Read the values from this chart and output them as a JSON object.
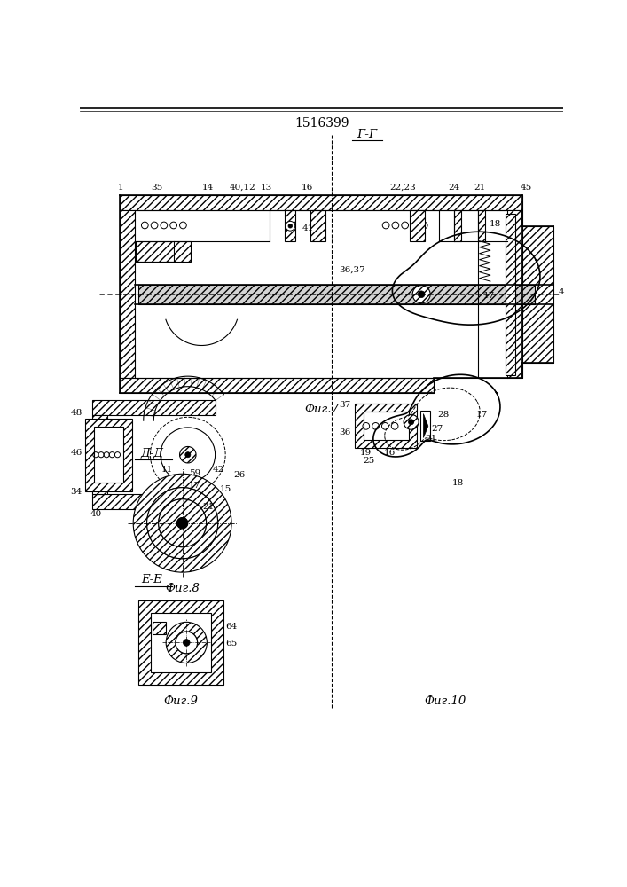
{
  "title": "1516399",
  "fig7_label": "Фиг.7",
  "fig8_label": "Фиг.8",
  "fig9_label": "Фиг.9",
  "fig10_label": "Фиг.10",
  "section_gg": "Г-Г",
  "section_dd": "Д-Д",
  "section_ee": "Е-Е",
  "bg_color": "#ffffff",
  "line_color": "#000000"
}
